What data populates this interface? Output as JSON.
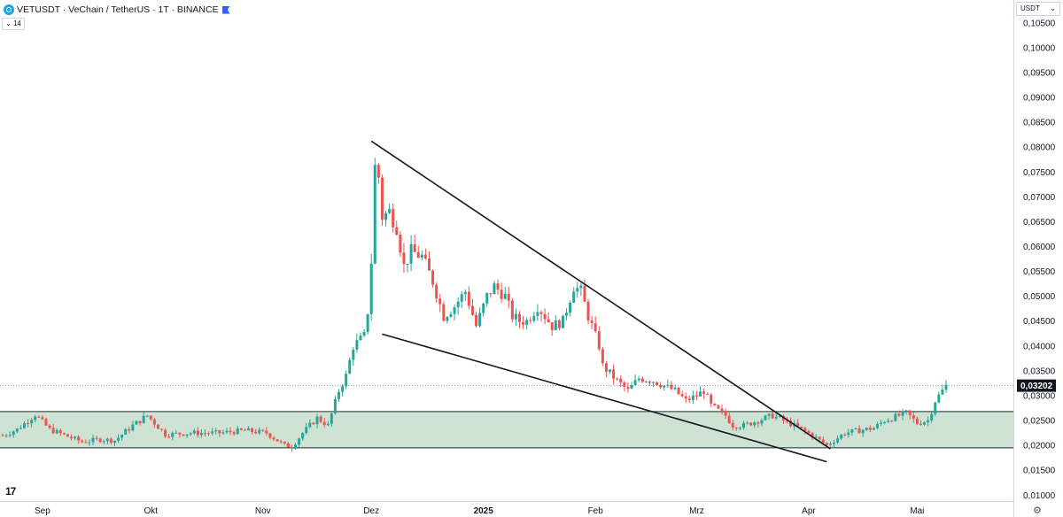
{
  "header": {
    "title": "VETUSDT · VeChain / TetherUS · 1T · BINANCE",
    "indicator_label": "14"
  },
  "currency": "USDT",
  "price_tag": "0,03202",
  "colors": {
    "up": "#26a69a",
    "down": "#ef5350",
    "zone": "#cfe3d5"
  },
  "chart_data": {
    "type": "candlestick",
    "title": "VETUSDT · VeChain / TetherUS · 1T · BINANCE",
    "y_ticks": [
      "0,10500",
      "0,10000",
      "0,09500",
      "0,09000",
      "0,08500",
      "0,08000",
      "0,07500",
      "0,07000",
      "0,06500",
      "0,06000",
      "0,05500",
      "0,05000",
      "0,04500",
      "0,04000",
      "0,03500",
      "0,03000",
      "0,02500",
      "0,02000",
      "0,01500",
      "0,01000"
    ],
    "y_tick_values": [
      0.105,
      0.1,
      0.095,
      0.09,
      0.085,
      0.08,
      0.075,
      0.07,
      0.065,
      0.06,
      0.055,
      0.05,
      0.045,
      0.04,
      0.035,
      0.03,
      0.025,
      0.02,
      0.015,
      0.01
    ],
    "ylim": [
      0.0088,
      0.1096
    ],
    "x_ticks": [
      "Sep",
      "Okt",
      "Nov",
      "Dez",
      "2025",
      "Feb",
      "Mrz",
      "Apr",
      "Mai"
    ],
    "x_tick_dates": [
      "2024-09-01",
      "2024-10-01",
      "2024-11-01",
      "2024-12-01",
      "2025-01-01",
      "2025-02-01",
      "2025-03-01",
      "2025-04-01",
      "2025-05-01"
    ],
    "first_date": "2024-08-21",
    "last_date": "2025-05-09",
    "last_price": 0.03202,
    "support_zone": [
      0.0195,
      0.0268
    ],
    "trendlines": [
      {
        "name": "upper",
        "from": [
          "2024-12-01",
          0.0812
        ],
        "to": [
          "2025-04-07",
          0.0193
        ]
      },
      {
        "name": "lower",
        "from": [
          "2024-12-04",
          0.0424
        ],
        "to": [
          "2025-04-06",
          0.0167
        ]
      }
    ],
    "series": [
      {
        "name": "VETUSDT",
        "close_anchors": [
          [
            "2024-08-21",
            0.022
          ],
          [
            "2024-08-25",
            0.0232
          ],
          [
            "2024-08-30",
            0.0262
          ],
          [
            "2024-09-03",
            0.0232
          ],
          [
            "2024-09-08",
            0.0218
          ],
          [
            "2024-09-12",
            0.0207
          ],
          [
            "2024-09-17",
            0.0212
          ],
          [
            "2024-09-21",
            0.021
          ],
          [
            "2024-09-26",
            0.024
          ],
          [
            "2024-09-30",
            0.026
          ],
          [
            "2024-10-02",
            0.0245
          ],
          [
            "2024-10-05",
            0.0222
          ],
          [
            "2024-10-12",
            0.0225
          ],
          [
            "2024-10-20",
            0.0225
          ],
          [
            "2024-10-27",
            0.023
          ],
          [
            "2024-11-02",
            0.0225
          ],
          [
            "2024-11-07",
            0.02
          ],
          [
            "2024-11-09",
            0.0197
          ],
          [
            "2024-11-12",
            0.0225
          ],
          [
            "2024-11-16",
            0.0255
          ],
          [
            "2024-11-19",
            0.024
          ],
          [
            "2024-11-22",
            0.031
          ],
          [
            "2024-11-24",
            0.034
          ],
          [
            "2024-11-26",
            0.04
          ],
          [
            "2024-11-29",
            0.042
          ],
          [
            "2024-11-30",
            0.047
          ],
          [
            "2024-12-01",
            0.057
          ],
          [
            "2024-12-02",
            0.076
          ],
          [
            "2024-12-03",
            0.074
          ],
          [
            "2024-12-04",
            0.066
          ],
          [
            "2024-12-06",
            0.067
          ],
          [
            "2024-12-08",
            0.064
          ],
          [
            "2024-12-10",
            0.056
          ],
          [
            "2024-12-12",
            0.059
          ],
          [
            "2024-12-15",
            0.058
          ],
          [
            "2024-12-18",
            0.053
          ],
          [
            "2024-12-21",
            0.046
          ],
          [
            "2024-12-24",
            0.048
          ],
          [
            "2024-12-27",
            0.051
          ],
          [
            "2024-12-30",
            0.044
          ],
          [
            "2025-01-02",
            0.05
          ],
          [
            "2025-01-04",
            0.052
          ],
          [
            "2025-01-07",
            0.05
          ],
          [
            "2025-01-09",
            0.046
          ],
          [
            "2025-01-11",
            0.045
          ],
          [
            "2025-01-13",
            0.045
          ],
          [
            "2025-01-16",
            0.048
          ],
          [
            "2025-01-20",
            0.044
          ],
          [
            "2025-01-23",
            0.045
          ],
          [
            "2025-01-26",
            0.052
          ],
          [
            "2025-01-28",
            0.051
          ],
          [
            "2025-01-30",
            0.046
          ],
          [
            "2025-02-02",
            0.04
          ],
          [
            "2025-02-03",
            0.036
          ],
          [
            "2025-02-07",
            0.033
          ],
          [
            "2025-02-10",
            0.031
          ],
          [
            "2025-02-13",
            0.0335
          ],
          [
            "2025-02-17",
            0.033
          ],
          [
            "2025-02-20",
            0.032
          ],
          [
            "2025-02-23",
            0.031
          ],
          [
            "2025-02-26",
            0.029
          ],
          [
            "2025-03-01",
            0.03
          ],
          [
            "2025-03-03",
            0.031
          ],
          [
            "2025-03-05",
            0.028
          ],
          [
            "2025-03-09",
            0.026
          ],
          [
            "2025-03-11",
            0.024
          ],
          [
            "2025-03-14",
            0.024
          ],
          [
            "2025-03-18",
            0.025
          ],
          [
            "2025-03-22",
            0.026
          ],
          [
            "2025-03-25",
            0.025
          ],
          [
            "2025-03-28",
            0.024
          ],
          [
            "2025-04-02",
            0.022
          ],
          [
            "2025-04-06",
            0.02
          ],
          [
            "2025-04-08",
            0.021
          ],
          [
            "2025-04-11",
            0.0225
          ],
          [
            "2025-04-15",
            0.023
          ],
          [
            "2025-04-19",
            0.0235
          ],
          [
            "2025-04-22",
            0.025
          ],
          [
            "2025-04-26",
            0.026
          ],
          [
            "2025-04-28",
            0.0265
          ],
          [
            "2025-05-01",
            0.0245
          ],
          [
            "2025-05-04",
            0.025
          ],
          [
            "2025-05-06",
            0.029
          ],
          [
            "2025-05-08",
            0.031
          ],
          [
            "2025-05-09",
            0.032
          ]
        ]
      }
    ]
  }
}
